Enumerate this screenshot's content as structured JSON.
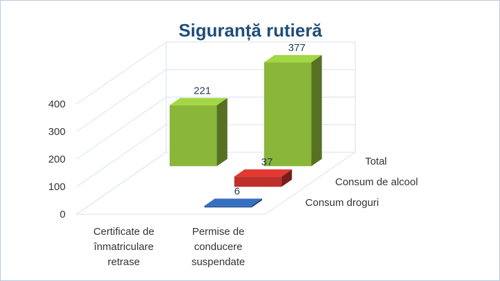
{
  "chart_data": {
    "type": "bar",
    "title": "Siguranță rutieră",
    "categories": [
      "Certificate de înmatriculare retrase",
      "Permise de conducere suspendate"
    ],
    "category_lines": [
      [
        "Certificate de",
        "înmatriculare",
        "retrase"
      ],
      [
        "Permise de",
        "conducere",
        "suspendate"
      ]
    ],
    "series": [
      {
        "name": "Consum droguri",
        "values": [
          null,
          6
        ],
        "color": "#2e5fa3"
      },
      {
        "name": "Consum de alcool",
        "values": [
          null,
          37
        ],
        "color": "#c0302b"
      },
      {
        "name": "Total",
        "values": [
          221,
          377
        ],
        "color": "#8ab63a"
      }
    ],
    "yticks": [
      "0",
      "100",
      "200",
      "300",
      "400"
    ],
    "ylim": [
      0,
      400
    ],
    "grid": true,
    "legend": "series labels on depth axis (right)",
    "projection": "3d"
  }
}
